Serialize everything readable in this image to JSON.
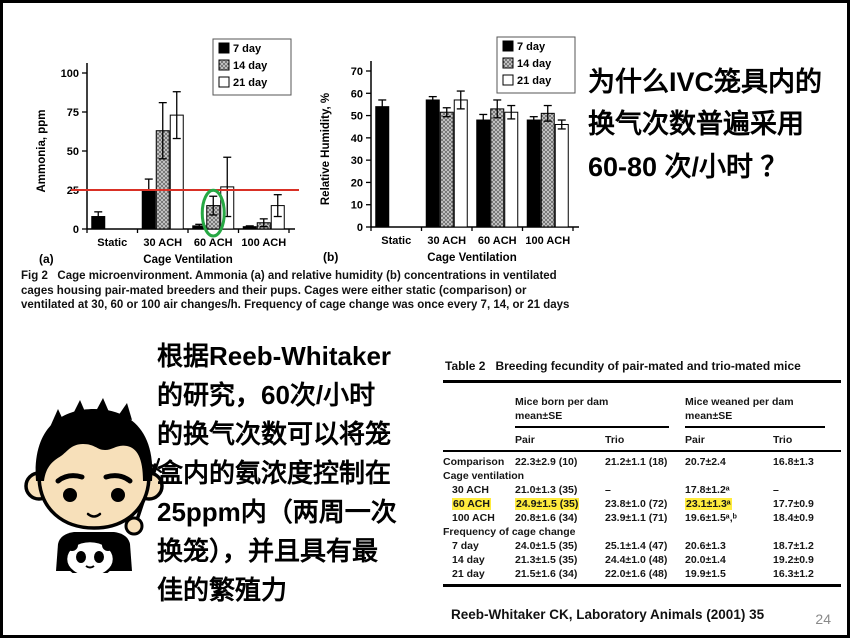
{
  "slide": {
    "question": "为什么IVC笼具内的\n换气次数普遍采用\n60-80 次/小时 ？",
    "caption": "Fig 2   Cage microenvironment. Ammonia (a) and relative humidity (b) concentrations in ventilated cages housing pair-mated breeders and their pups. Cages were either static (comparison) or ventilated at 30, 60 or 100 air changes/h. Frequency of cage change was once every 7, 14, or 21 days",
    "paragraph": "根据Reeb-Whitaker\n的研究，60次/小时\n的换气次数可以将笼\n盒内的氨浓度控制在\n25ppm内（两周一次\n换笼），并且具有最\n佳的繁殖力",
    "citation": "Reeb-Whitaker CK, Laboratory Animals (2001) 35",
    "page_number": "24"
  },
  "chart_data": [
    {
      "type": "bar",
      "panel_label": "(a)",
      "xlabel": "Cage Ventilation",
      "ylabel": "Ammonia, ppm",
      "ylim": [
        0,
        100
      ],
      "yticks": [
        0,
        25,
        50,
        75,
        100
      ],
      "categories": [
        "Static",
        "30 ACH",
        "60 ACH",
        "100 ACH"
      ],
      "legend": [
        "7 day",
        "14 day",
        "21 day"
      ],
      "legend_position": "top-right",
      "grid": false,
      "series": [
        {
          "name": "7 day",
          "values": [
            8,
            25,
            2,
            1.5
          ],
          "errors": [
            3,
            7,
            1,
            0.5
          ]
        },
        {
          "name": "14 day",
          "values": [
            null,
            63,
            15,
            4
          ],
          "errors": [
            null,
            18,
            6,
            2.5
          ]
        },
        {
          "name": "21 day",
          "values": [
            null,
            73,
            27,
            15
          ],
          "errors": [
            null,
            15,
            19,
            7
          ]
        }
      ],
      "ref_line": {
        "y": 25,
        "color": "#d93025"
      },
      "annotation": {
        "shape": "ellipse",
        "category": "60 ACH",
        "series": "14 day",
        "color": "#27a844"
      }
    },
    {
      "type": "bar",
      "panel_label": "(b)",
      "xlabel": "Cage Ventilation",
      "ylabel": "Relative Humidity, %",
      "ylim": [
        0,
        70
      ],
      "yticks": [
        0,
        10,
        20,
        30,
        40,
        50,
        60,
        70
      ],
      "categories": [
        "Static",
        "30 ACH",
        "60 ACH",
        "100 ACH"
      ],
      "legend": [
        "7 day",
        "14 day",
        "21 day"
      ],
      "legend_position": "top-right",
      "grid": false,
      "series": [
        {
          "name": "7 day",
          "values": [
            54,
            57,
            48,
            48
          ],
          "errors": [
            3,
            1.5,
            2.5,
            1.5
          ]
        },
        {
          "name": "14 day",
          "values": [
            null,
            51.5,
            53,
            51
          ],
          "errors": [
            null,
            2,
            4,
            3.5
          ]
        },
        {
          "name": "21 day",
          "values": [
            null,
            57,
            51.5,
            46
          ],
          "errors": [
            null,
            4,
            3,
            2
          ]
        }
      ]
    }
  ],
  "table": {
    "title": "Table 2   Breeding fecundity of pair-mated and trio-mated mice",
    "group_headers": [
      "Mice born per dam\nmean±SE",
      "Mice weaned per dam\nmean±SE"
    ],
    "sub_headers": [
      "Pair",
      "Trio",
      "Pair",
      "Trio"
    ],
    "highlight_color": "#ffec3d",
    "rows": [
      {
        "label": "Comparison",
        "cells": [
          "22.3±2.9 (10)",
          "21.2±1.1 (18)",
          "20.7±2.4",
          "16.8±1.3"
        ]
      },
      {
        "label": "Cage ventilation",
        "section": true
      },
      {
        "label": "30 ACH",
        "indent": true,
        "cells": [
          "21.0±1.3 (35)",
          "–",
          "17.8±1.2ᵃ",
          "–"
        ]
      },
      {
        "label": "60 ACH",
        "indent": true,
        "label_highlight": true,
        "cell_highlights": [
          0,
          2
        ],
        "cells": [
          "24.9±1.5 (35)",
          "23.8±1.0 (72)",
          "23.1±1.3ᵃ",
          "17.7±0.9"
        ]
      },
      {
        "label": "100 ACH",
        "indent": true,
        "cells": [
          "20.8±1.6 (34)",
          "23.9±1.1 (71)",
          "19.6±1.5ᵃ,ᵇ",
          "18.4±0.9"
        ]
      },
      {
        "label": "Frequency of cage change",
        "section": true
      },
      {
        "label": "7 day",
        "indent": true,
        "cells": [
          "24.0±1.5 (35)",
          "25.1±1.4 (47)",
          "20.6±1.3",
          "18.7±1.2"
        ]
      },
      {
        "label": "14 day",
        "indent": true,
        "cells": [
          "21.3±1.5 (35)",
          "24.4±1.0 (48)",
          "20.0±1.4",
          "19.2±0.9"
        ]
      },
      {
        "label": "21 day",
        "indent": true,
        "cells": [
          "21.5±1.6 (34)",
          "22.0±1.6 (48)",
          "19.9±1.5",
          "16.3±1.2"
        ]
      }
    ]
  }
}
